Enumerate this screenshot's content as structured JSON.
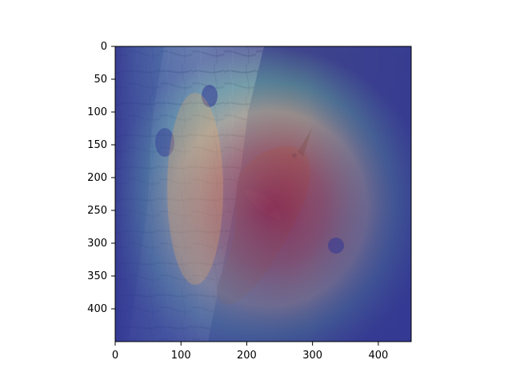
{
  "figure": {
    "background": "#ffffff",
    "image_content": "bird-on-tree-bark with heatmap overlay",
    "overlay_colormap": "jet",
    "colors": {
      "bark_light": "#d7d1c7",
      "bark_dark": "#2b2b2b",
      "bird_brown": "#7a4a2a",
      "heat_red": "#d7191c",
      "heat_yellow": "#ffff33",
      "heat_cyan": "#66c2a5",
      "heat_blue": "#313695"
    }
  },
  "chart_data": {
    "type": "heatmap",
    "title": "",
    "xlabel": "",
    "ylabel": "",
    "xlim": [
      0,
      450
    ],
    "ylim": [
      450,
      0
    ],
    "x_ticks": [
      0,
      100,
      200,
      300,
      400
    ],
    "y_ticks": [
      0,
      50,
      100,
      150,
      200,
      250,
      300,
      350,
      400
    ],
    "grid": false,
    "legend": "none"
  }
}
